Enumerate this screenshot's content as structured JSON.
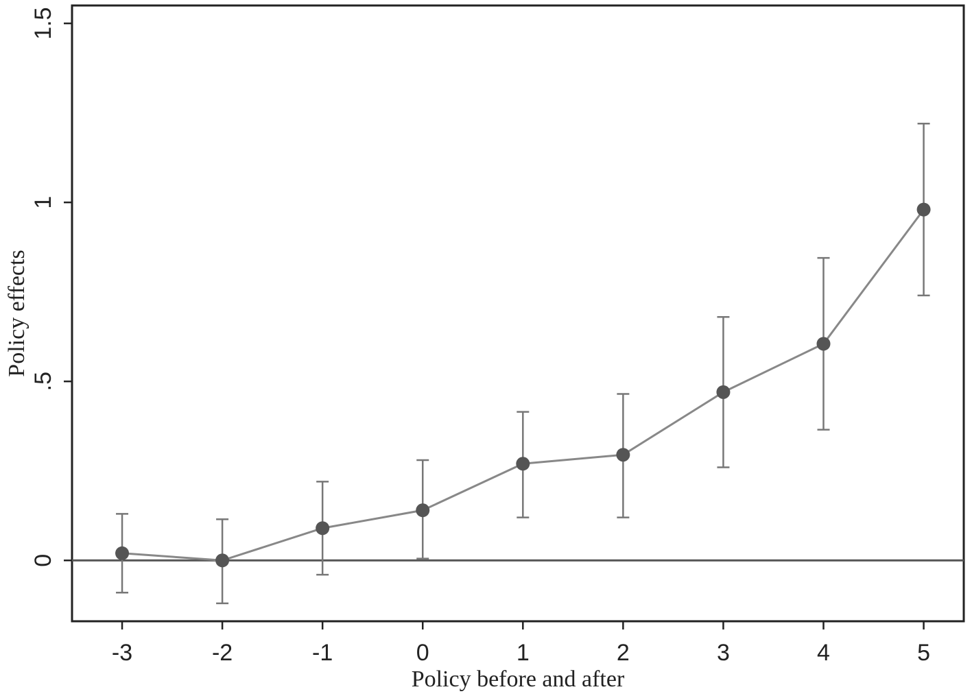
{
  "chart_data": {
    "type": "line",
    "title": "",
    "xlabel": "Policy before and after",
    "ylabel": "Policy effects",
    "x": [
      -3,
      -2,
      -1,
      0,
      1,
      2,
      3,
      4,
      5
    ],
    "x_tick_labels": [
      "-3",
      "-2",
      "-1",
      "0",
      "1",
      "2",
      "3",
      "4",
      "5"
    ],
    "y_ticks": [
      0,
      0.5,
      1,
      1.5
    ],
    "y_tick_labels": [
      "0",
      ".5",
      "1",
      "1.5"
    ],
    "xlim": [
      -3.5,
      5.4
    ],
    "ylim": [
      -0.17,
      1.55
    ],
    "reference_line_y": 0,
    "grid": false,
    "series": [
      {
        "values": [
          0.02,
          0.0,
          0.09,
          0.14,
          0.27,
          0.295,
          0.47,
          0.605,
          0.98
        ],
        "ci_lower": [
          -0.09,
          -0.12,
          -0.04,
          0.005,
          0.12,
          0.12,
          0.26,
          0.365,
          0.74
        ],
        "ci_upper": [
          0.13,
          0.115,
          0.22,
          0.28,
          0.415,
          0.465,
          0.68,
          0.845,
          1.22
        ]
      }
    ],
    "colors": {
      "marker": "#555555",
      "line": "#888888",
      "errorbar": "#777777",
      "zero_line": "#555555",
      "frame": "#222222"
    }
  }
}
